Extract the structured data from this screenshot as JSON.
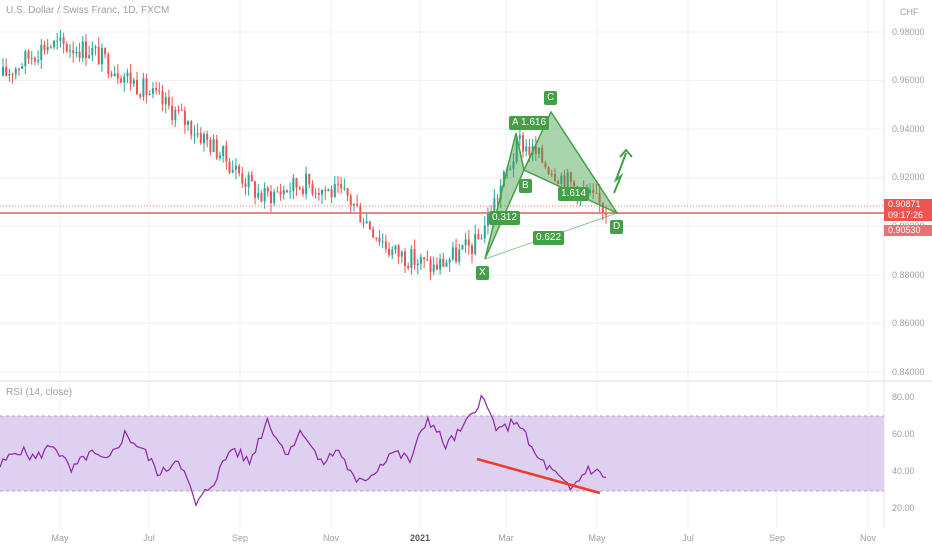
{
  "header": {
    "symbol_title": "U.S. Dollar / Swiss Franc, 1D, FXCM",
    "currency": "CHF"
  },
  "price_scale": {
    "ticks": [
      "0.98000",
      "0.96000",
      "0.94000",
      "0.92000",
      "0.90000",
      "0.88000",
      "0.86000",
      "0.84000"
    ],
    "last_price": "0.90871",
    "countdown": "09:17:26",
    "level_price": "0.90530"
  },
  "rsi": {
    "title": "RSI (14, close)",
    "ticks": [
      "80.00",
      "60.00",
      "40.00",
      "20.00"
    ],
    "upper_band": 70,
    "lower_band": 30
  },
  "time_axis": {
    "labels": [
      "May",
      "Jul",
      "Sep",
      "Nov",
      "2021",
      "Mar",
      "May",
      "Jul",
      "Sep",
      "Nov"
    ]
  },
  "pattern": {
    "points": [
      "X",
      "A",
      "B",
      "C",
      "D"
    ],
    "ratios": [
      "0.312",
      "1.616",
      "1.614",
      "0.622"
    ]
  },
  "colors": {
    "up_candle": "#26a69a",
    "down_candle": "#ef5350",
    "pattern": "#43a047",
    "rsi_line": "#8e24aa",
    "rsi_band": "#d8c8ec",
    "level_line": "#e57373",
    "divergence": "#ef3b2c"
  },
  "chart_data": [
    {
      "type": "candlestick",
      "title": "U.S. Dollar / Swiss Franc, 1D, FXCM",
      "ylim": [
        0.835,
        0.99
      ],
      "x": [
        "2020-03",
        "2020-04",
        "2020-05",
        "2020-06",
        "2020-07",
        "2020-08",
        "2020-09",
        "2020-10",
        "2020-11",
        "2020-12",
        "2021-01",
        "2021-02",
        "2021-03",
        "2021-04",
        "2021-05"
      ],
      "close_path": [
        0.962,
        0.975,
        0.973,
        0.96,
        0.947,
        0.931,
        0.912,
        0.918,
        0.912,
        0.89,
        0.883,
        0.893,
        0.935,
        0.92,
        0.907
      ],
      "horizontal_levels": [
        0.90871,
        0.9053
      ],
      "harmonic_pattern": {
        "X": 0.887,
        "A": 0.937,
        "B": 0.916,
        "C": 0.946,
        "D": 0.905,
        "ratios": {
          "XB": 0.312,
          "AC": 1.616,
          "BD": 1.614,
          "XD": 0.622
        }
      }
    },
    {
      "type": "line",
      "title": "RSI (14, close)",
      "ylim": [
        15,
        85
      ],
      "bands": [
        30,
        70
      ],
      "values": [
        43,
        52,
        47,
        55,
        40,
        50,
        45,
        60,
        52,
        38,
        48,
        22,
        35,
        53,
        45,
        68,
        50,
        62,
        44,
        52,
        33,
        40,
        51,
        46,
        69,
        54,
        63,
        80,
        61,
        68,
        49,
        40,
        30,
        42,
        37
      ]
    }
  ]
}
